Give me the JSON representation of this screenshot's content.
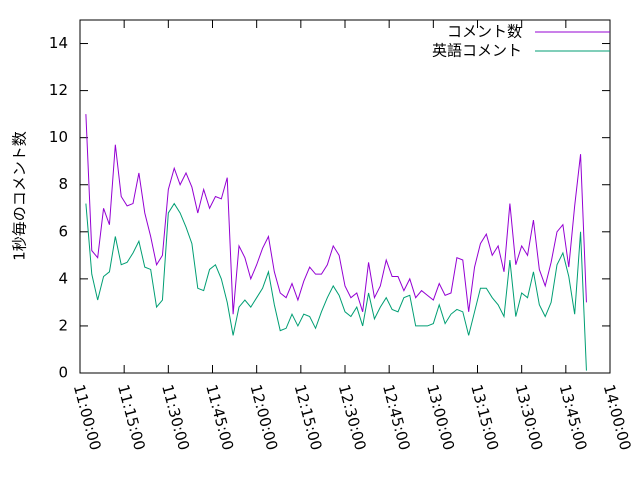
{
  "chart_data": {
    "type": "line",
    "ylabel": "1秒毎のコメント数",
    "x": [
      "11:02:00",
      "11:04:00",
      "11:06:00",
      "11:08:00",
      "11:10:00",
      "11:12:00",
      "11:14:00",
      "11:16:00",
      "11:18:00",
      "11:20:00",
      "11:22:00",
      "11:24:00",
      "11:26:00",
      "11:28:00",
      "11:30:00",
      "11:32:00",
      "11:34:00",
      "11:36:00",
      "11:38:00",
      "11:40:00",
      "11:42:00",
      "11:44:00",
      "11:46:00",
      "11:48:00",
      "11:50:00",
      "11:52:00",
      "11:54:00",
      "11:56:00",
      "11:58:00",
      "12:00:00",
      "12:02:00",
      "12:04:00",
      "12:06:00",
      "12:08:00",
      "12:10:00",
      "12:12:00",
      "12:14:00",
      "12:16:00",
      "12:18:00",
      "12:20:00",
      "12:22:00",
      "12:24:00",
      "12:26:00",
      "12:28:00",
      "12:30:00",
      "12:32:00",
      "12:34:00",
      "12:36:00",
      "12:38:00",
      "12:40:00",
      "12:42:00",
      "12:44:00",
      "12:46:00",
      "12:48:00",
      "12:50:00",
      "12:52:00",
      "12:54:00",
      "12:56:00",
      "12:58:00",
      "13:00:00",
      "13:02:00",
      "13:04:00",
      "13:06:00",
      "13:08:00",
      "13:10:00",
      "13:12:00",
      "13:14:00",
      "13:16:00",
      "13:18:00",
      "13:20:00",
      "13:22:00",
      "13:24:00",
      "13:26:00",
      "13:28:00",
      "13:30:00",
      "13:32:00",
      "13:34:00",
      "13:36:00",
      "13:38:00",
      "13:40:00",
      "13:42:00",
      "13:44:00",
      "13:46:00",
      "13:48:00",
      "13:50:00",
      "13:52:00"
    ],
    "series": [
      {
        "name": "コメント数",
        "color": "#9400d3",
        "values": [
          11.0,
          5.2,
          4.9,
          7.0,
          6.3,
          9.7,
          7.5,
          7.1,
          7.2,
          8.5,
          6.8,
          5.8,
          4.6,
          5.0,
          7.8,
          8.7,
          8.0,
          8.5,
          7.9,
          6.8,
          7.8,
          7.0,
          7.5,
          7.4,
          8.3,
          2.5,
          5.4,
          4.9,
          4.0,
          4.6,
          5.3,
          5.8,
          4.3,
          3.4,
          3.2,
          3.8,
          3.1,
          3.9,
          4.5,
          4.2,
          4.2,
          4.6,
          5.4,
          5.0,
          3.7,
          3.2,
          3.4,
          2.6,
          4.7,
          3.2,
          3.7,
          4.8,
          4.1,
          4.1,
          3.5,
          4.0,
          3.2,
          3.5,
          3.3,
          3.1,
          3.8,
          3.3,
          3.4,
          4.9,
          4.8,
          2.6,
          4.5,
          5.5,
          5.9,
          5.0,
          5.4,
          4.3,
          7.2,
          4.6,
          5.4,
          5.0,
          6.5,
          4.4,
          3.7,
          4.7,
          6.0,
          6.3,
          4.5,
          7.1,
          9.3,
          3.0
        ]
      },
      {
        "name": "英語コメント",
        "color": "#009e73",
        "values": [
          7.2,
          4.2,
          3.1,
          4.1,
          4.3,
          5.8,
          4.6,
          4.7,
          5.1,
          5.6,
          4.5,
          4.4,
          2.8,
          3.1,
          6.8,
          7.2,
          6.8,
          6.2,
          5.5,
          3.6,
          3.5,
          4.4,
          4.6,
          4.0,
          3.0,
          1.6,
          2.8,
          3.1,
          2.8,
          3.2,
          3.6,
          4.3,
          2.9,
          1.8,
          1.9,
          2.5,
          2.0,
          2.5,
          2.4,
          1.9,
          2.6,
          3.2,
          3.7,
          3.3,
          2.6,
          2.4,
          2.8,
          2.0,
          3.4,
          2.3,
          2.8,
          3.2,
          2.7,
          2.6,
          3.2,
          3.3,
          2.0,
          2.0,
          2.0,
          2.1,
          2.9,
          2.1,
          2.5,
          2.7,
          2.6,
          1.6,
          2.6,
          3.6,
          3.6,
          3.2,
          2.9,
          2.4,
          4.8,
          2.4,
          3.4,
          3.2,
          4.3,
          2.9,
          2.4,
          3.0,
          4.6,
          5.1,
          4.1,
          2.5,
          6.0,
          0.1
        ]
      }
    ],
    "xlim": [
      "11:00:00",
      "14:00:00"
    ],
    "xticks": [
      "11:00:00",
      "11:15:00",
      "11:30:00",
      "11:45:00",
      "12:00:00",
      "12:15:00",
      "12:30:00",
      "12:45:00",
      "13:00:00",
      "13:15:00",
      "13:30:00",
      "13:45:00",
      "14:00:00"
    ],
    "ylim": [
      0,
      15
    ],
    "yticks": [
      0,
      2,
      4,
      6,
      8,
      10,
      12,
      14
    ],
    "legend": "top-right"
  }
}
